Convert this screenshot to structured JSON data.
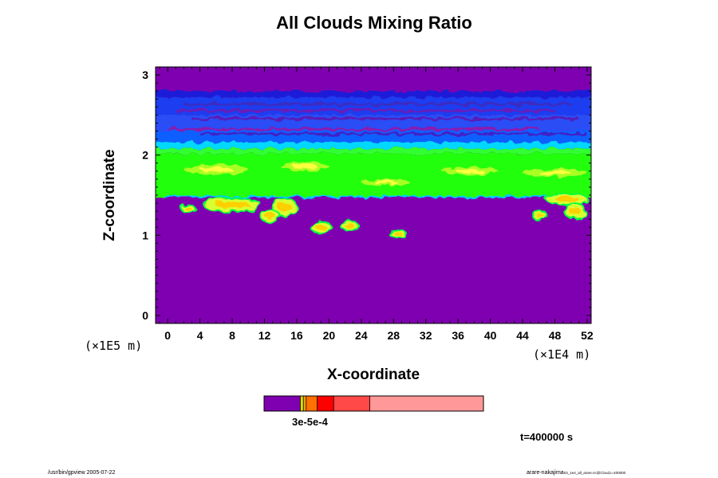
{
  "chart_data": {
    "type": "heatmap",
    "title": "All Clouds Mixing Ratio",
    "xlabel": "X-coordinate",
    "ylabel": "Z-coordinate",
    "x_unit": "(×1E4 m)",
    "y_unit": "(×1E5 m)",
    "xlim": [
      -1.5,
      52.5
    ],
    "ylim": [
      -0.1,
      3.1
    ],
    "x_ticks": [
      0,
      4,
      8,
      12,
      16,
      20,
      24,
      28,
      32,
      36,
      40,
      44,
      48,
      52
    ],
    "y_ticks": [
      0,
      1,
      2,
      3
    ],
    "background_color": "#7f00b0",
    "bands": [
      {
        "z0": 2.72,
        "z1": 2.8,
        "color": "#1a1ad8"
      },
      {
        "z0": 2.5,
        "z1": 2.72,
        "color": "#1f3cf0"
      },
      {
        "z0": 2.3,
        "z1": 2.5,
        "color": "#2a4ef5"
      },
      {
        "z0": 2.16,
        "z1": 2.3,
        "color": "#1060ff"
      },
      {
        "z0": 2.08,
        "z1": 2.16,
        "color": "#00d8ff"
      },
      {
        "z0": 2.02,
        "z1": 2.08,
        "color": "#30ff30"
      },
      {
        "z0": 1.47,
        "z1": 2.02,
        "color": "#20ff10"
      }
    ],
    "streaks": [
      {
        "x0": 2,
        "x1": 50,
        "z": 2.63,
        "color": "#3c2cc0"
      },
      {
        "x0": 1,
        "x1": 48,
        "z": 2.55,
        "color": "#6a1ab8"
      },
      {
        "x0": 3,
        "x1": 51,
        "z": 2.45,
        "color": "#5a1ab8"
      },
      {
        "x0": 0,
        "x1": 46,
        "z": 2.32,
        "color": "#8a1ab0"
      },
      {
        "x0": 4,
        "x1": 52,
        "z": 2.26,
        "color": "#4020c8"
      }
    ],
    "yellow_green_patches": [
      {
        "x": 2,
        "z": 1.82,
        "w": 8,
        "h": 0.12
      },
      {
        "x": 14,
        "z": 1.86,
        "w": 6,
        "h": 0.1
      },
      {
        "x": 34,
        "z": 1.8,
        "w": 7,
        "h": 0.1
      },
      {
        "x": 44,
        "z": 1.78,
        "w": 8,
        "h": 0.1
      },
      {
        "x": 24,
        "z": 1.66,
        "w": 6,
        "h": 0.08
      }
    ],
    "cloud_cells": [
      {
        "x": 4.5,
        "z": 1.38,
        "w": 7,
        "h": 0.16
      },
      {
        "x": 13,
        "z": 1.35,
        "w": 3,
        "h": 0.2
      },
      {
        "x": 11.6,
        "z": 1.24,
        "w": 2.2,
        "h": 0.14
      },
      {
        "x": 47,
        "z": 1.45,
        "w": 5,
        "h": 0.12
      },
      {
        "x": 49.3,
        "z": 1.3,
        "w": 2.4,
        "h": 0.18
      },
      {
        "x": 17.8,
        "z": 1.1,
        "w": 2.4,
        "h": 0.12
      },
      {
        "x": 21.5,
        "z": 1.12,
        "w": 2.0,
        "h": 0.1
      },
      {
        "x": 27.5,
        "z": 1.02,
        "w": 2.0,
        "h": 0.06
      },
      {
        "x": 1.8,
        "z": 1.33,
        "w": 1.5,
        "h": 0.08
      },
      {
        "x": 45.3,
        "z": 1.25,
        "w": 1.6,
        "h": 0.1
      }
    ],
    "colorbar": {
      "colors": [
        "#7f00b0",
        "#d5e000",
        "#f5a000",
        "#ff7000",
        "#ff0000",
        "#ff4848",
        "#ff9898"
      ],
      "fractions": [
        0.165,
        0.014,
        0.013,
        0.05,
        0.075,
        0.165,
        0.518
      ],
      "label": "3e-5e-4"
    },
    "time": "t=400000 s"
  },
  "footer": {
    "left": "/usr/bin/gpview 2005-07-22",
    "right_main": "arare-nakajima",
    "right_small": "03_1e4_all_arare.nc@Cloud,t=400000"
  }
}
